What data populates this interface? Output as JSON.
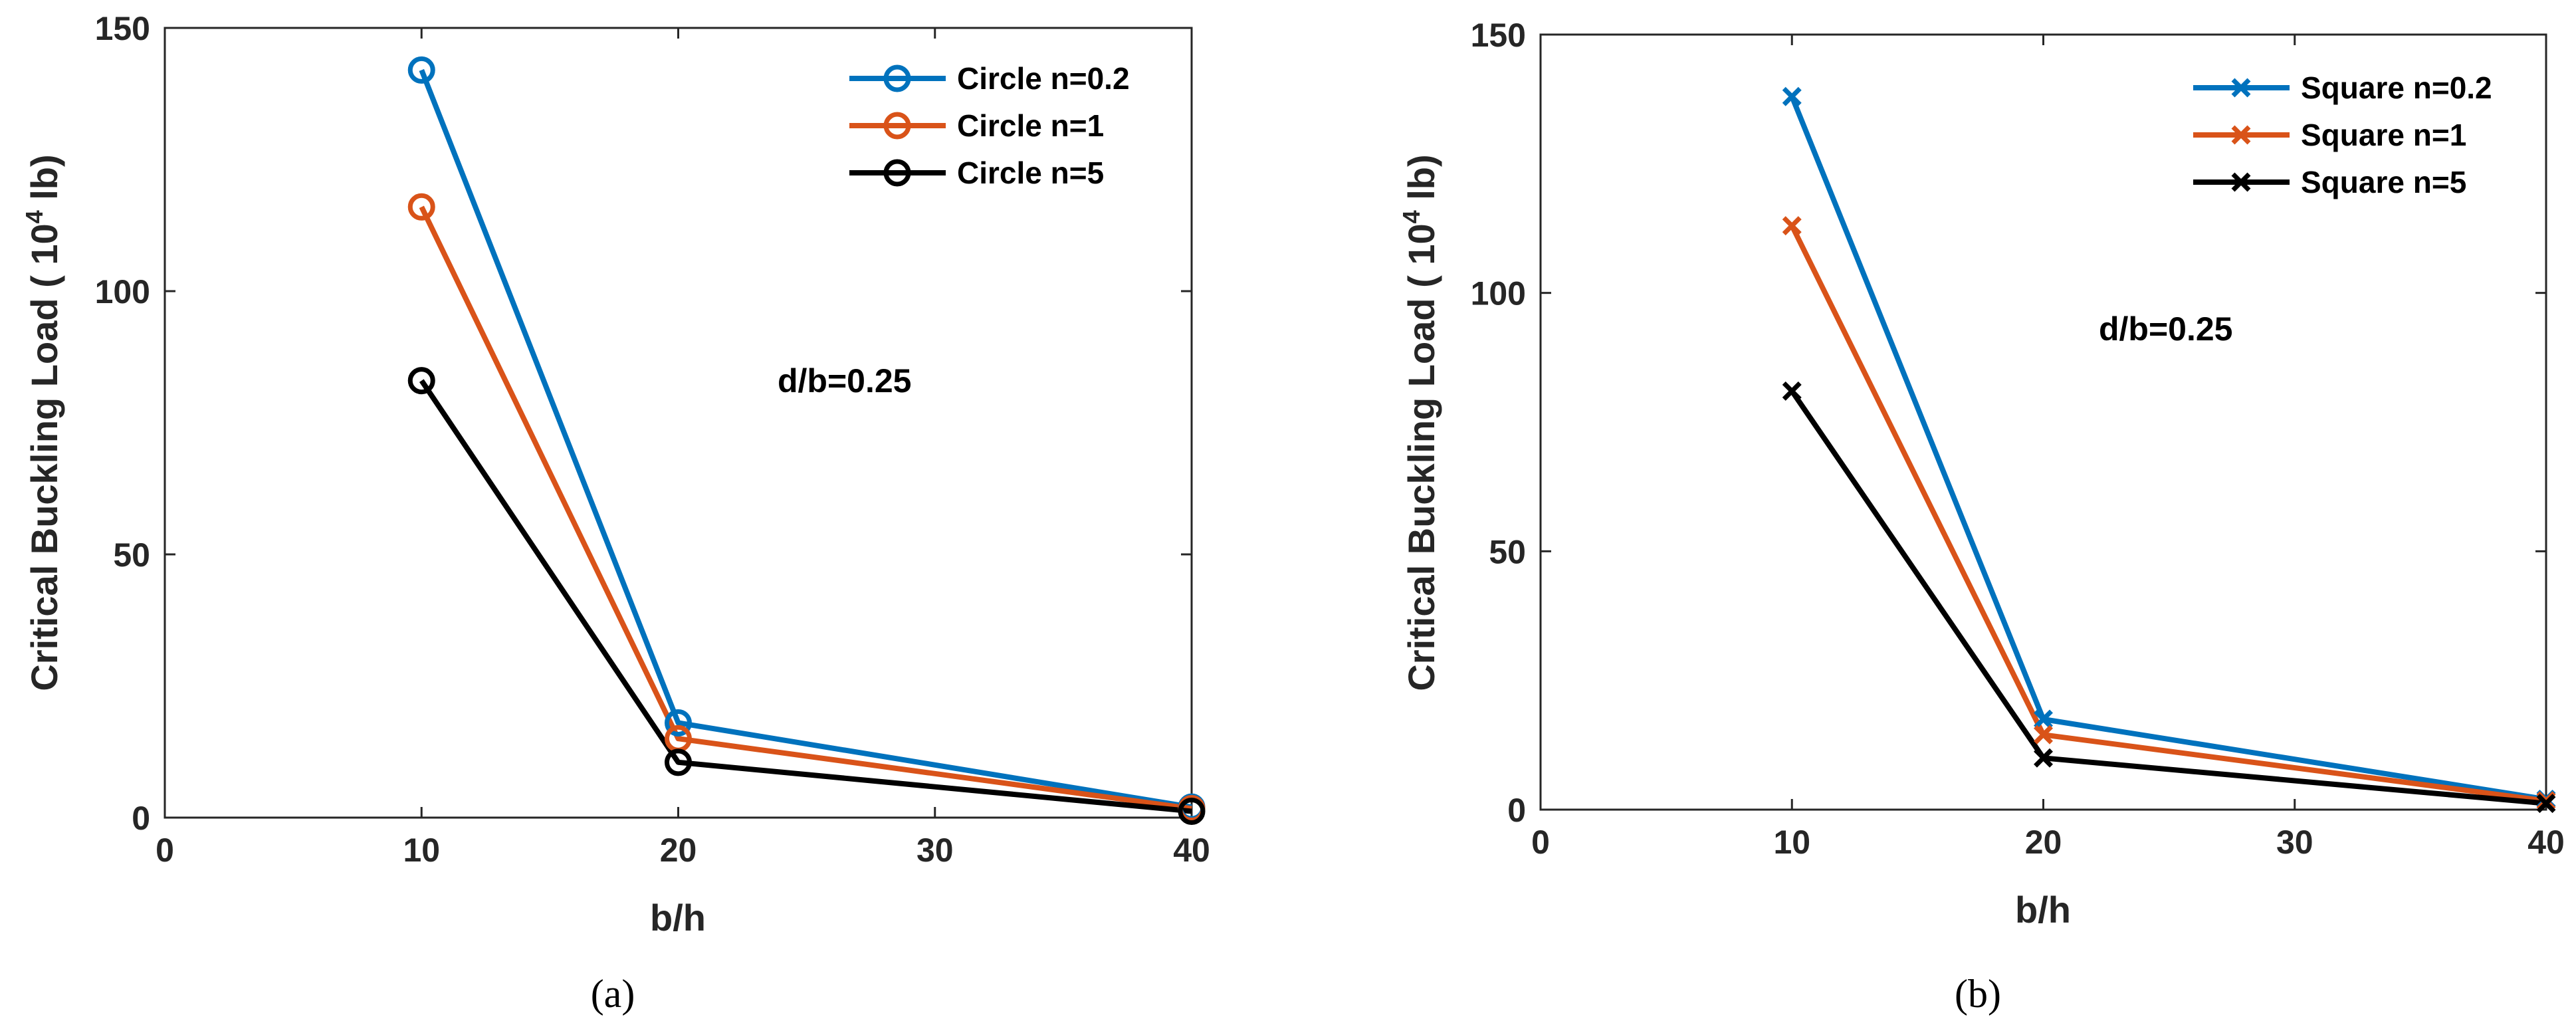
{
  "chart_data": [
    {
      "id": "a",
      "type": "line",
      "caption": "(a)",
      "x": [
        10,
        20,
        40
      ],
      "xticks": [
        "0",
        "10",
        "20",
        "30",
        "40"
      ],
      "yticks": [
        "0",
        "50",
        "100",
        "150"
      ],
      "xlabel": "b/h",
      "ylabel": "Critical Buckling Load ( 10",
      "ylabel_sup": "4",
      "ylabel_end": " lb)",
      "xlim": [
        0,
        40
      ],
      "ylim": [
        0,
        150
      ],
      "annotation": "d/b=0.25",
      "marker": "circle",
      "series": [
        {
          "name": "Circle n=0.2",
          "color": "#0072BD",
          "values": [
            142,
            18,
            2
          ]
        },
        {
          "name": "Circle n=1",
          "color": "#D95319",
          "values": [
            116,
            15,
            1.7
          ]
        },
        {
          "name": "Circle n=5",
          "color": "#000000",
          "values": [
            83,
            10.5,
            1.2
          ]
        }
      ]
    },
    {
      "id": "b",
      "type": "line",
      "caption": "(b)",
      "x": [
        10,
        20,
        40
      ],
      "xticks": [
        "0",
        "10",
        "20",
        "30",
        "40"
      ],
      "yticks": [
        "0",
        "50",
        "100",
        "150"
      ],
      "xlabel": "b/h",
      "ylabel": "Critical Buckling Load ( 10",
      "ylabel_sup": "4",
      "ylabel_end": " lb)",
      "xlim": [
        0,
        40
      ],
      "ylim": [
        0,
        150
      ],
      "annotation": "d/b=0.25",
      "marker": "cross",
      "series": [
        {
          "name": "Square n=0.2",
          "color": "#0072BD",
          "values": [
            138,
            17.5,
            2
          ]
        },
        {
          "name": "Square n=1",
          "color": "#D95319",
          "values": [
            113,
            14.5,
            1.7
          ]
        },
        {
          "name": "Square n=5",
          "color": "#000000",
          "values": [
            81,
            10,
            1.2
          ]
        }
      ]
    }
  ]
}
